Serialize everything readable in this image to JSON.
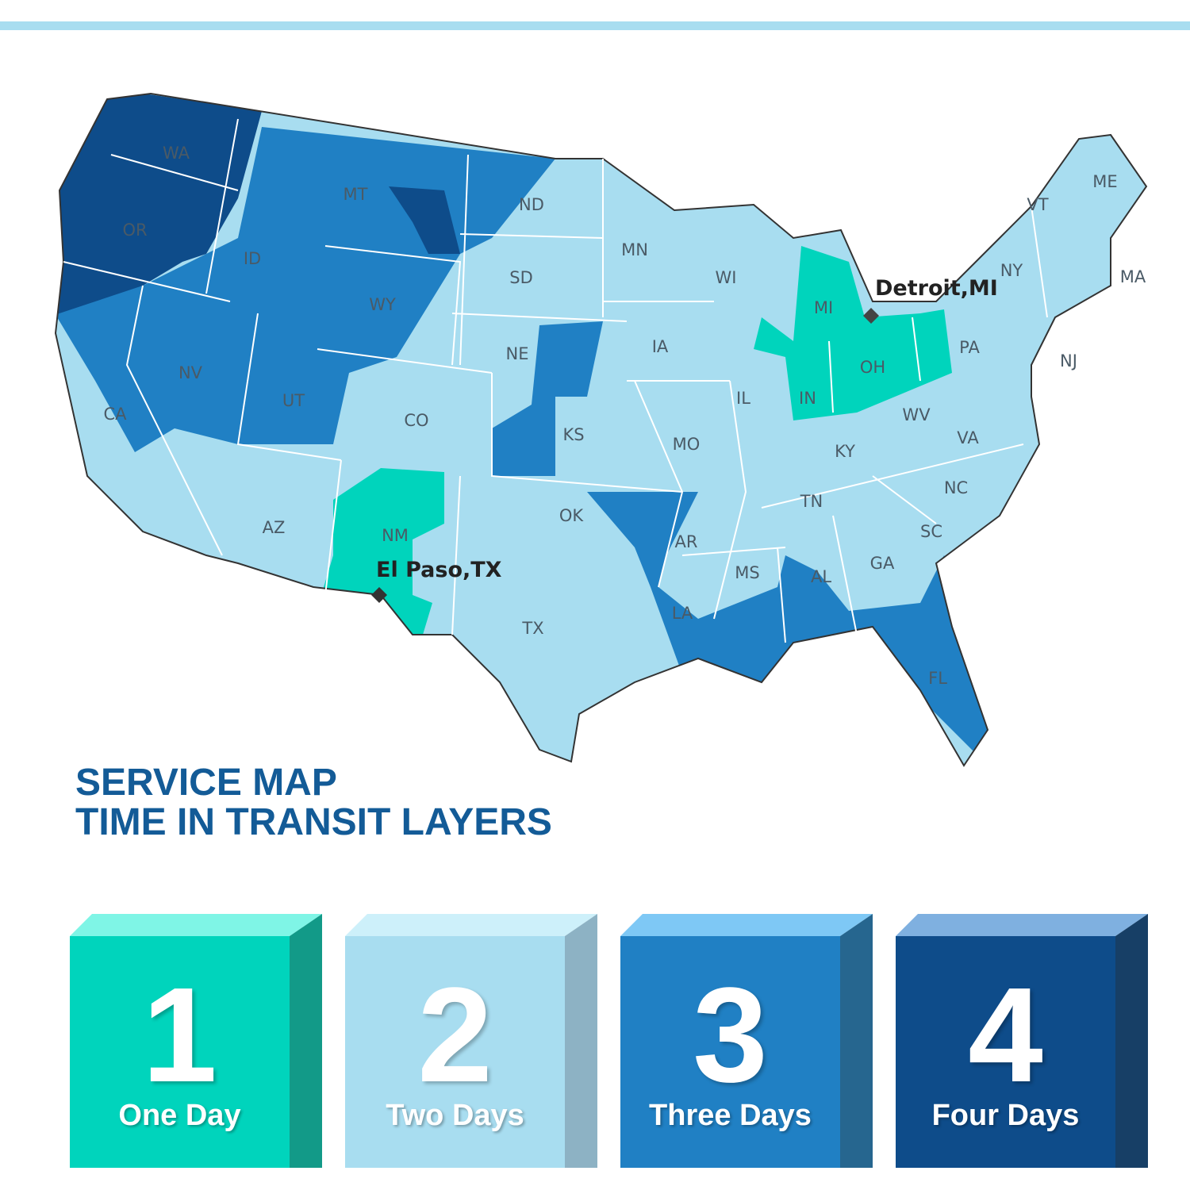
{
  "title": {
    "line1": "SERVICE MAP",
    "line2": "TIME IN TRANSIT LAYERS"
  },
  "colors": {
    "one_day": "#00d4bc",
    "two_days": "#a8ddf0",
    "three_days": "#2080c4",
    "four_days": "#0e4c8a",
    "title": "#135b97"
  },
  "cities": [
    {
      "name": "Detroit,MI"
    },
    {
      "name": "El Paso,TX"
    }
  ],
  "states": [
    "WA",
    "OR",
    "CA",
    "ID",
    "NV",
    "MT",
    "WY",
    "UT",
    "AZ",
    "CO",
    "NM",
    "ND",
    "SD",
    "NE",
    "KS",
    "OK",
    "TX",
    "MN",
    "IA",
    "MO",
    "AR",
    "LA",
    "WI",
    "IL",
    "MI",
    "IN",
    "OH",
    "KY",
    "TN",
    "MS",
    "AL",
    "GA",
    "FL",
    "SC",
    "NC",
    "VA",
    "WV",
    "PA",
    "NY",
    "VT",
    "ME",
    "MA",
    "NJ"
  ],
  "legend": [
    {
      "number": "1",
      "label": "One Day",
      "front": "#00d4bc",
      "side": "#129a88",
      "top": "#7ff5e6"
    },
    {
      "number": "2",
      "label": "Two Days",
      "front": "#a8ddf0",
      "side": "#8db2c4",
      "top": "#cdf0fa"
    },
    {
      "number": "3",
      "label": "Three Days",
      "front": "#2080c4",
      "side": "#26668f",
      "top": "#7ec8f5"
    },
    {
      "number": "4",
      "label": "Four Days",
      "front": "#0e4c8a",
      "side": "#173f66",
      "top": "#7fb0e0"
    }
  ]
}
